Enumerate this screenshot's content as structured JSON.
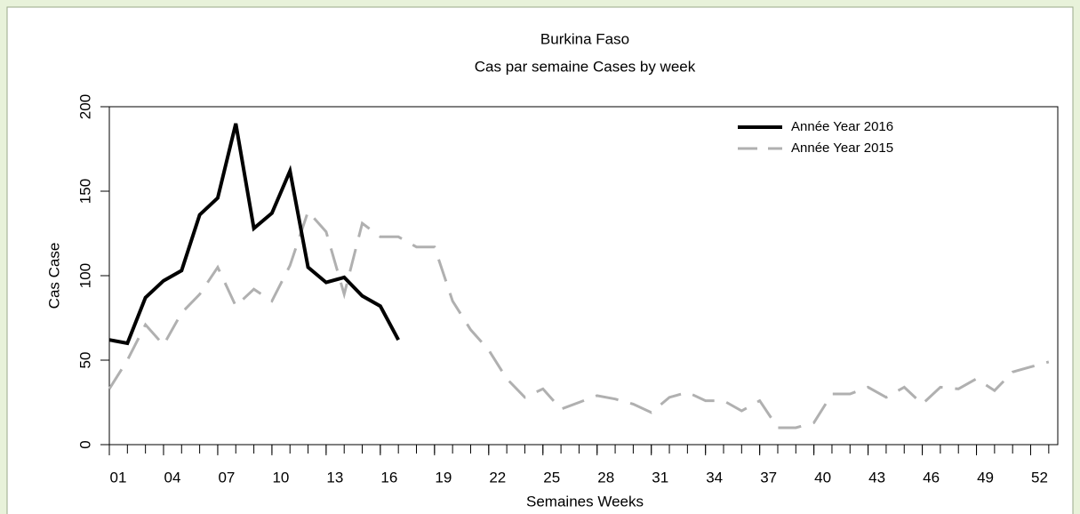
{
  "chart_data": {
    "type": "line",
    "title": "Burkina Faso",
    "subtitle": "Cas par semaine Cases by week",
    "x_label": "Semaines Weeks",
    "y_label": "Cas Case",
    "x": [
      1,
      2,
      3,
      4,
      5,
      6,
      7,
      8,
      9,
      10,
      11,
      12,
      13,
      14,
      15,
      16,
      17,
      18,
      19,
      20,
      21,
      22,
      23,
      24,
      25,
      26,
      27,
      28,
      29,
      30,
      31,
      32,
      33,
      34,
      35,
      36,
      37,
      38,
      39,
      40,
      41,
      42,
      43,
      44,
      45,
      46,
      47,
      48,
      49,
      50,
      51,
      52,
      53
    ],
    "series": [
      {
        "name": "Année Year 2016",
        "color": "#000000",
        "dash": "solid",
        "values": [
          62,
          60,
          87,
          97,
          103,
          136,
          146,
          190,
          128,
          137,
          162,
          105,
          96,
          99,
          88,
          82,
          62,
          null,
          null,
          null,
          null,
          null,
          null,
          null,
          null,
          null,
          null,
          null,
          null,
          null,
          null,
          null,
          null,
          null,
          null,
          null,
          null,
          null,
          null,
          null,
          null,
          null,
          null,
          null,
          null,
          null,
          null,
          null,
          null,
          null,
          null,
          null,
          null
        ]
      },
      {
        "name": "Année Year 2015",
        "color": "#b0b0b0",
        "dash": "dashed",
        "values": [
          33,
          50,
          71,
          59,
          78,
          89,
          105,
          82,
          92,
          85,
          106,
          138,
          126,
          89,
          131,
          123,
          123,
          117,
          117,
          85,
          68,
          56,
          39,
          28,
          33,
          21,
          25,
          29,
          27,
          24,
          19,
          28,
          31,
          26,
          26,
          20,
          26,
          10,
          10,
          13,
          30,
          30,
          34,
          28,
          34,
          24,
          34,
          33,
          39,
          32,
          43,
          46,
          49
        ]
      }
    ],
    "xlim": [
      1,
      53.5
    ],
    "ylim": [
      0,
      200
    ],
    "xticks": [
      {
        "value": 1,
        "label": "01"
      },
      {
        "value": 4,
        "label": "04"
      },
      {
        "value": 7,
        "label": "07"
      },
      10,
      13,
      16,
      19,
      22,
      25,
      28,
      31,
      34,
      37,
      40,
      43,
      46,
      49,
      52
    ],
    "xminorticks": [
      1,
      2,
      3,
      4,
      5,
      6,
      7,
      8,
      9,
      10,
      11,
      12,
      13,
      14,
      15,
      16,
      17,
      18,
      19,
      20,
      21,
      22,
      23,
      24,
      25,
      26,
      27,
      28,
      29,
      30,
      31,
      32,
      33,
      34,
      35,
      36,
      37,
      38,
      39,
      40,
      41,
      42,
      43,
      44,
      45,
      46,
      47,
      48,
      49,
      50,
      51,
      52,
      53
    ],
    "yticks": [
      0,
      50,
      100,
      150,
      200
    ],
    "legend": "top-right"
  }
}
